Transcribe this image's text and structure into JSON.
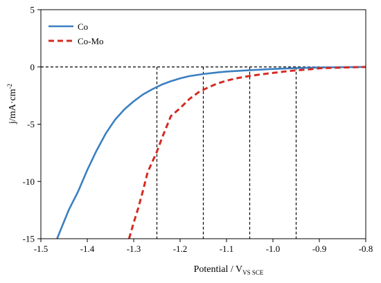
{
  "chart_data": {
    "type": "line",
    "title": "",
    "xlabel": "Potential / V",
    "xlabel_subscript": "VS SCE",
    "ylabel": "j/mA·cm",
    "ylabel_superscript": "-2",
    "xlim": [
      -1.5,
      -0.8
    ],
    "ylim": [
      -15,
      5
    ],
    "x_ticks": [
      -1.5,
      -1.4,
      -1.3,
      -1.2,
      -1.1,
      -1.0,
      -0.9,
      -0.8
    ],
    "x_tick_labels": [
      "-1.5",
      "-1.4",
      "-1.3",
      "-1.2",
      "-1.1",
      "-1.0",
      "-0.9",
      "-0.8"
    ],
    "y_ticks": [
      5,
      0,
      -5,
      -10,
      -15
    ],
    "y_tick_labels": [
      "5",
      "0",
      "-5",
      "-10",
      "-15"
    ],
    "legend": {
      "placement": "top-left"
    },
    "series": [
      {
        "name": "Co",
        "color": "#3a7fc1",
        "style": "solid",
        "x": [
          -1.465,
          -1.455,
          -1.44,
          -1.42,
          -1.4,
          -1.38,
          -1.36,
          -1.34,
          -1.32,
          -1.3,
          -1.28,
          -1.26,
          -1.25,
          -1.24,
          -1.22,
          -1.2,
          -1.18,
          -1.15,
          -1.12,
          -1.1,
          -1.05,
          -1.0,
          -0.95,
          -0.9,
          -0.85,
          -0.8
        ],
        "y": [
          -15.0,
          -14.0,
          -12.5,
          -10.9,
          -9.0,
          -7.3,
          -5.8,
          -4.6,
          -3.7,
          -3.0,
          -2.4,
          -1.95,
          -1.75,
          -1.55,
          -1.25,
          -1.0,
          -0.8,
          -0.62,
          -0.48,
          -0.4,
          -0.28,
          -0.18,
          -0.1,
          -0.05,
          -0.02,
          0.0
        ]
      },
      {
        "name": "Co-Mo",
        "color": "#d42a22",
        "style": "dashed",
        "x": [
          -1.31,
          -1.3,
          -1.29,
          -1.28,
          -1.27,
          -1.26,
          -1.25,
          -1.24,
          -1.23,
          -1.22,
          -1.2,
          -1.18,
          -1.16,
          -1.15,
          -1.14,
          -1.12,
          -1.1,
          -1.08,
          -1.05,
          -1.02,
          -1.0,
          -0.97,
          -0.95,
          -0.92,
          -0.9,
          -0.85,
          -0.8
        ],
        "y": [
          -15.0,
          -13.6,
          -12.3,
          -10.8,
          -9.2,
          -8.3,
          -7.4,
          -6.3,
          -5.3,
          -4.3,
          -3.6,
          -2.8,
          -2.2,
          -2.0,
          -1.8,
          -1.45,
          -1.2,
          -1.0,
          -0.78,
          -0.62,
          -0.52,
          -0.38,
          -0.3,
          -0.2,
          -0.12,
          -0.05,
          0.0
        ]
      }
    ],
    "reference_lines": {
      "horizontal_y": 0,
      "vertical_x": [
        -1.25,
        -1.15,
        -1.05,
        -0.95
      ],
      "color": "#000000",
      "style": "dashed"
    }
  }
}
